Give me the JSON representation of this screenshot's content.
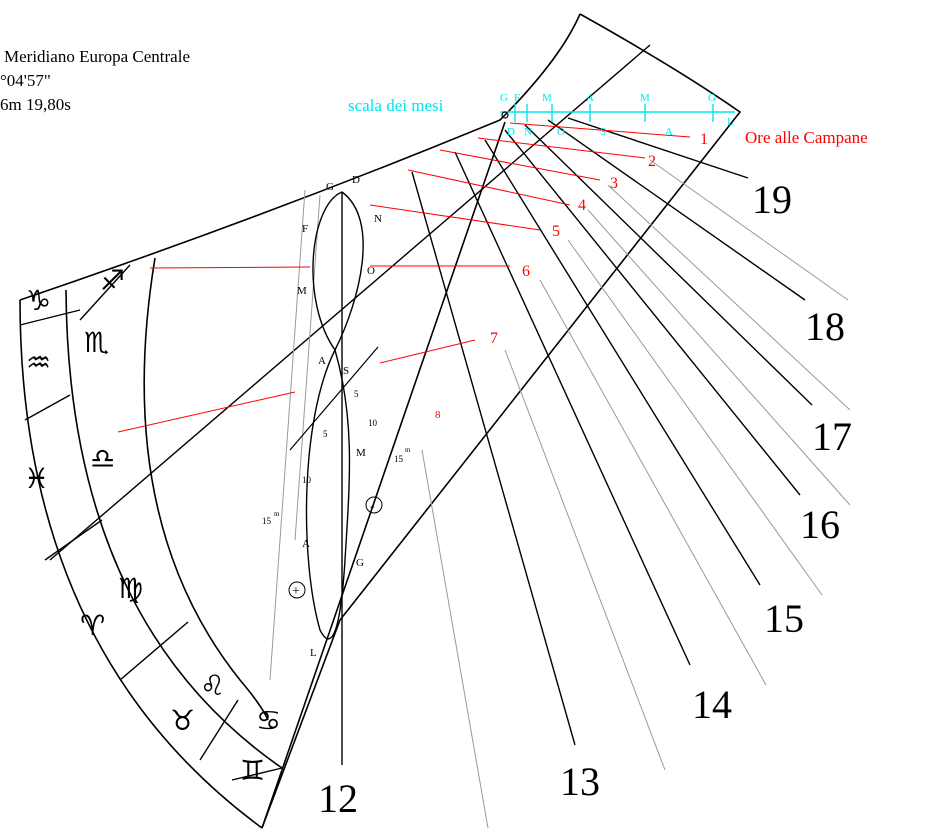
{
  "header": {
    "line1": "Meridiano Europa Centrale",
    "line2": "°04'57\"",
    "line3": "6m 19,80s"
  },
  "colors": {
    "ink": "#000000",
    "bell": "#ff0000",
    "month_scale": "#00e5ee",
    "faint": "#8c8c8c",
    "pink": "#ff8080"
  },
  "month_scale": {
    "title": "scala dei mesi",
    "top_letters": [
      "G",
      "F",
      "M",
      "A",
      "M",
      "G"
    ],
    "bottom_letters": [
      "D",
      "N",
      "O",
      "S",
      "A",
      "L"
    ]
  },
  "bell_hours": {
    "title": "Ore alle Campane",
    "labels": [
      "1",
      "2",
      "3",
      "4",
      "5",
      "6",
      "7",
      "8"
    ]
  },
  "hour_labels": [
    "12",
    "13",
    "14",
    "15",
    "16",
    "17",
    "18",
    "19"
  ],
  "analemma": {
    "month_letters": [
      "G",
      "D",
      "N",
      "F",
      "O",
      "M",
      "A",
      "S",
      "M",
      "A",
      "G",
      "L"
    ],
    "ticks": [
      "5",
      "10",
      "5",
      "10",
      "15",
      "15"
    ],
    "minute_sup": "m",
    "plus_sign": "+",
    "minus_sign": "-"
  },
  "zodiac": {
    "outer": [
      "♑",
      "♒",
      "♓",
      "♈",
      "♉"
    ],
    "inner": [
      "♐",
      "♏",
      "♎",
      "♍",
      "♌",
      "♋",
      "♊"
    ]
  }
}
